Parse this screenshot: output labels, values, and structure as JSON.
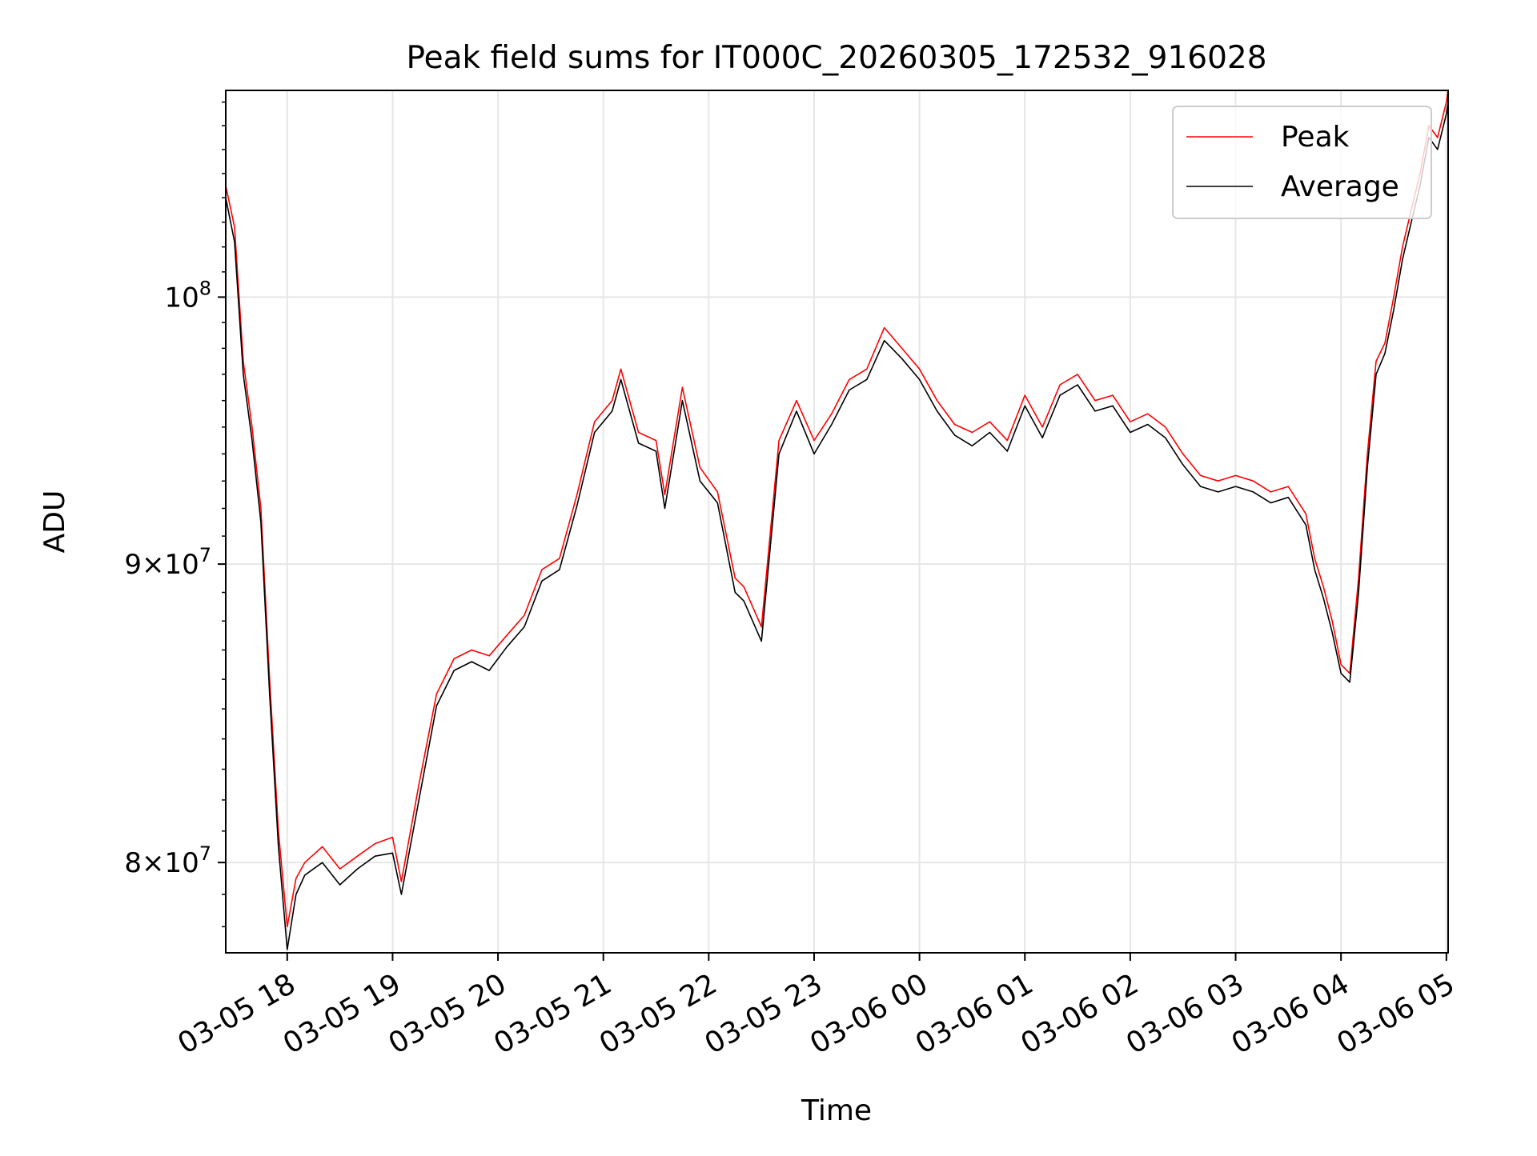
{
  "chart_data": {
    "type": "line",
    "title": "Peak field sums for IT000C_20260305_172532_916028",
    "xlabel": "Time",
    "ylabel": "ADU",
    "yscale": "log",
    "ylim": [
      77200000,
      108500000
    ],
    "xlim": [
      "2026-03-05 17:25",
      "2026-03-06 05:01"
    ],
    "grid": true,
    "legend_position": "top-right",
    "x_ticks": [
      "03-05 18",
      "03-05 19",
      "03-05 20",
      "03-05 21",
      "03-05 22",
      "03-05 23",
      "03-06 00",
      "03-06 01",
      "03-06 02",
      "03-06 03",
      "03-06 04",
      "03-06 05"
    ],
    "x_tick_times": [
      "2026-03-05 18:00",
      "2026-03-05 19:00",
      "2026-03-05 20:00",
      "2026-03-05 21:00",
      "2026-03-05 22:00",
      "2026-03-05 23:00",
      "2026-03-06 00:00",
      "2026-03-06 01:00",
      "2026-03-06 02:00",
      "2026-03-06 03:00",
      "2026-03-06 04:00",
      "2026-03-06 05:00"
    ],
    "y_ticks": [
      {
        "value": 80000000,
        "mantissa": "8×10",
        "exponent": "7"
      },
      {
        "value": 90000000,
        "mantissa": "9×10",
        "exponent": "7"
      },
      {
        "value": 100000000,
        "mantissa": "10",
        "exponent": "8"
      }
    ],
    "series": [
      {
        "name": "Peak",
        "color": "#ff0000",
        "x": [
          "2026-03-05 17:25",
          "2026-03-05 17:30",
          "2026-03-05 17:35",
          "2026-03-05 17:40",
          "2026-03-05 17:45",
          "2026-03-05 17:50",
          "2026-03-05 17:55",
          "2026-03-05 18:00",
          "2026-03-05 18:05",
          "2026-03-05 18:10",
          "2026-03-05 18:20",
          "2026-03-05 18:30",
          "2026-03-05 18:40",
          "2026-03-05 18:50",
          "2026-03-05 19:00",
          "2026-03-05 19:05",
          "2026-03-05 19:15",
          "2026-03-05 19:25",
          "2026-03-05 19:35",
          "2026-03-05 19:45",
          "2026-03-05 19:55",
          "2026-03-05 20:05",
          "2026-03-05 20:15",
          "2026-03-05 20:25",
          "2026-03-05 20:35",
          "2026-03-05 20:45",
          "2026-03-05 20:55",
          "2026-03-05 21:05",
          "2026-03-05 21:10",
          "2026-03-05 21:20",
          "2026-03-05 21:30",
          "2026-03-05 21:35",
          "2026-03-05 21:45",
          "2026-03-05 21:55",
          "2026-03-05 22:05",
          "2026-03-05 22:15",
          "2026-03-05 22:20",
          "2026-03-05 22:30",
          "2026-03-05 22:40",
          "2026-03-05 22:50",
          "2026-03-05 23:00",
          "2026-03-05 23:10",
          "2026-03-05 23:20",
          "2026-03-05 23:30",
          "2026-03-05 23:40",
          "2026-03-05 23:50",
          "2026-03-06 00:00",
          "2026-03-06 00:10",
          "2026-03-06 00:20",
          "2026-03-06 00:30",
          "2026-03-06 00:40",
          "2026-03-06 00:50",
          "2026-03-06 01:00",
          "2026-03-06 01:10",
          "2026-03-06 01:20",
          "2026-03-06 01:30",
          "2026-03-06 01:40",
          "2026-03-06 01:50",
          "2026-03-06 02:00",
          "2026-03-06 02:10",
          "2026-03-06 02:20",
          "2026-03-06 02:30",
          "2026-03-06 02:40",
          "2026-03-06 02:50",
          "2026-03-06 03:00",
          "2026-03-06 03:10",
          "2026-03-06 03:20",
          "2026-03-06 03:30",
          "2026-03-06 03:40",
          "2026-03-06 03:45",
          "2026-03-06 03:50",
          "2026-03-06 03:55",
          "2026-03-06 04:00",
          "2026-03-06 04:05",
          "2026-03-06 04:10",
          "2026-03-06 04:15",
          "2026-03-06 04:20",
          "2026-03-06 04:25",
          "2026-03-06 04:30",
          "2026-03-06 04:35",
          "2026-03-06 04:40",
          "2026-03-06 04:45",
          "2026-03-06 04:50",
          "2026-03-06 04:55",
          "2026-03-06 05:00",
          "2026-03-06 05:01"
        ],
        "values": [
          104500000,
          102800000,
          97500000,
          95000000,
          92000000,
          86000000,
          81000000,
          78000000,
          79500000,
          80000000,
          80500000,
          79800000,
          80200000,
          80600000,
          80800000,
          79400000,
          82500000,
          85500000,
          86700000,
          87000000,
          86800000,
          87500000,
          88200000,
          89800000,
          90200000,
          92500000,
          95200000,
          96000000,
          97200000,
          94800000,
          94500000,
          92500000,
          96500000,
          93500000,
          92600000,
          89500000,
          89200000,
          87800000,
          94500000,
          96000000,
          94500000,
          95500000,
          96800000,
          97200000,
          98800000,
          98000000,
          97200000,
          96000000,
          95100000,
          94800000,
          95200000,
          94500000,
          96200000,
          95000000,
          96600000,
          97000000,
          96000000,
          96200000,
          95200000,
          95500000,
          95000000,
          94000000,
          93200000,
          93000000,
          93200000,
          93000000,
          92600000,
          92800000,
          91800000,
          90200000,
          89200000,
          88000000,
          86500000,
          86200000,
          89500000,
          94000000,
          97500000,
          98200000,
          100000000,
          102000000,
          103500000,
          105000000,
          107000000,
          106500000,
          108000000,
          108500000
        ]
      },
      {
        "name": "Average",
        "color": "#000000",
        "x": [
          "2026-03-05 17:25",
          "2026-03-05 17:30",
          "2026-03-05 17:35",
          "2026-03-05 17:40",
          "2026-03-05 17:45",
          "2026-03-05 17:50",
          "2026-03-05 17:55",
          "2026-03-05 18:00",
          "2026-03-05 18:05",
          "2026-03-05 18:10",
          "2026-03-05 18:20",
          "2026-03-05 18:30",
          "2026-03-05 18:40",
          "2026-03-05 18:50",
          "2026-03-05 19:00",
          "2026-03-05 19:05",
          "2026-03-05 19:15",
          "2026-03-05 19:25",
          "2026-03-05 19:35",
          "2026-03-05 19:45",
          "2026-03-05 19:55",
          "2026-03-05 20:05",
          "2026-03-05 20:15",
          "2026-03-05 20:25",
          "2026-03-05 20:35",
          "2026-03-05 20:45",
          "2026-03-05 20:55",
          "2026-03-05 21:05",
          "2026-03-05 21:10",
          "2026-03-05 21:20",
          "2026-03-05 21:30",
          "2026-03-05 21:35",
          "2026-03-05 21:45",
          "2026-03-05 21:55",
          "2026-03-05 22:05",
          "2026-03-05 22:15",
          "2026-03-05 22:20",
          "2026-03-05 22:30",
          "2026-03-05 22:40",
          "2026-03-05 22:50",
          "2026-03-05 23:00",
          "2026-03-05 23:10",
          "2026-03-05 23:20",
          "2026-03-05 23:30",
          "2026-03-05 23:40",
          "2026-03-05 23:50",
          "2026-03-06 00:00",
          "2026-03-06 00:10",
          "2026-03-06 00:20",
          "2026-03-06 00:30",
          "2026-03-06 00:40",
          "2026-03-06 00:50",
          "2026-03-06 01:00",
          "2026-03-06 01:10",
          "2026-03-06 01:20",
          "2026-03-06 01:30",
          "2026-03-06 01:40",
          "2026-03-06 01:50",
          "2026-03-06 02:00",
          "2026-03-06 02:10",
          "2026-03-06 02:20",
          "2026-03-06 02:30",
          "2026-03-06 02:40",
          "2026-03-06 02:50",
          "2026-03-06 03:00",
          "2026-03-06 03:10",
          "2026-03-06 03:20",
          "2026-03-06 03:30",
          "2026-03-06 03:40",
          "2026-03-06 03:45",
          "2026-03-06 03:50",
          "2026-03-06 03:55",
          "2026-03-06 04:00",
          "2026-03-06 04:05",
          "2026-03-06 04:10",
          "2026-03-06 04:15",
          "2026-03-06 04:20",
          "2026-03-06 04:25",
          "2026-03-06 04:30",
          "2026-03-06 04:35",
          "2026-03-06 04:40",
          "2026-03-06 04:45",
          "2026-03-06 04:50",
          "2026-03-06 04:55",
          "2026-03-06 05:00",
          "2026-03-06 05:01"
        ],
        "values": [
          104000000,
          102200000,
          97000000,
          94500000,
          91500000,
          85500000,
          80500000,
          77300000,
          79000000,
          79600000,
          80000000,
          79300000,
          79800000,
          80200000,
          80300000,
          79000000,
          82000000,
          85100000,
          86300000,
          86600000,
          86300000,
          87100000,
          87800000,
          89400000,
          89800000,
          92100000,
          94800000,
          95600000,
          96800000,
          94400000,
          94100000,
          92000000,
          96000000,
          93000000,
          92200000,
          89000000,
          88700000,
          87300000,
          94000000,
          95600000,
          94000000,
          95100000,
          96400000,
          96800000,
          98300000,
          97600000,
          96800000,
          95600000,
          94700000,
          94300000,
          94800000,
          94100000,
          95800000,
          94600000,
          96200000,
          96600000,
          95600000,
          95800000,
          94800000,
          95100000,
          94600000,
          93600000,
          92800000,
          92600000,
          92800000,
          92600000,
          92200000,
          92400000,
          91400000,
          89800000,
          88800000,
          87600000,
          86200000,
          85900000,
          89000000,
          93500000,
          97000000,
          97800000,
          99500000,
          101500000,
          103000000,
          104500000,
          106500000,
          106000000,
          107500000,
          108000000
        ]
      }
    ]
  }
}
